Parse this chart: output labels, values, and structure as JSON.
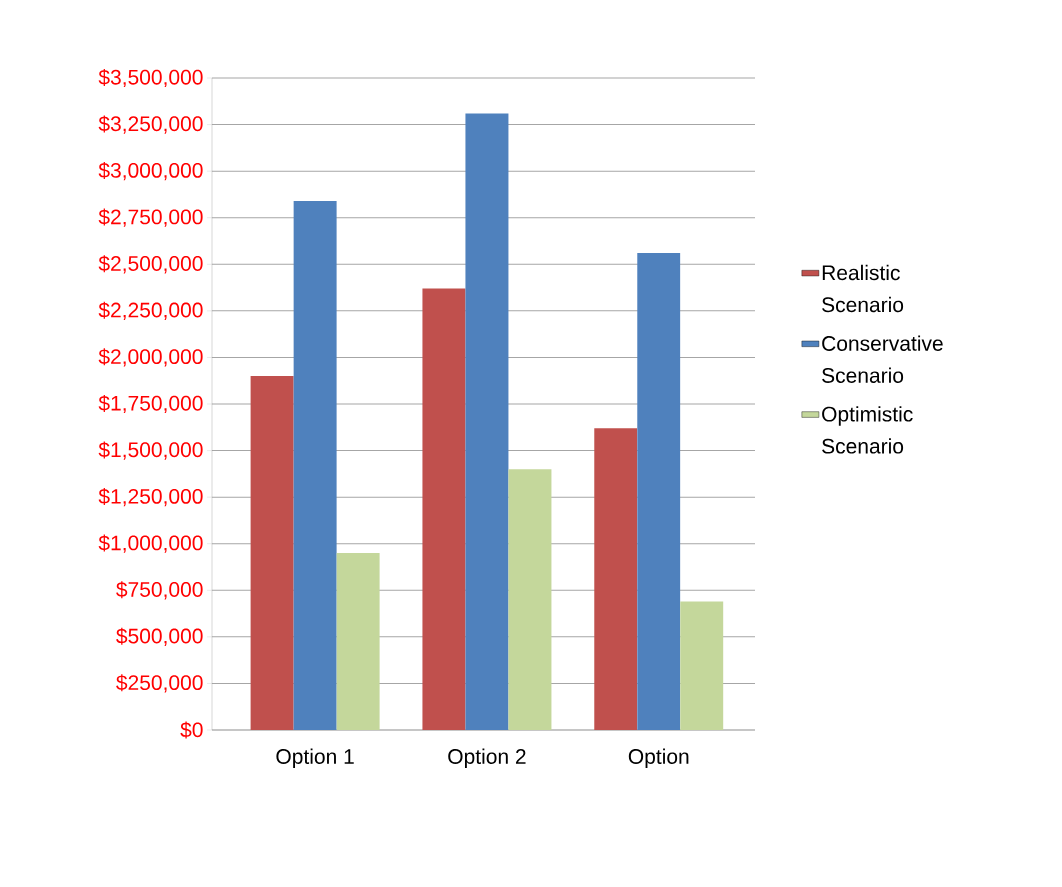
{
  "chart_data": {
    "type": "bar",
    "categories": [
      "Option 1",
      "Option 2",
      "Option"
    ],
    "series": [
      {
        "name": "Realistic Scenario",
        "color": "#c0504d",
        "values": [
          1900000,
          2370000,
          1620000
        ]
      },
      {
        "name": "Conservative Scenario",
        "color": "#4f81bd",
        "values": [
          2840000,
          3310000,
          2560000
        ]
      },
      {
        "name": "Optimistic Scenario",
        "color": "#c4d79b",
        "values": [
          950000,
          1400000,
          690000
        ]
      }
    ],
    "ylim": [
      0,
      3500000
    ],
    "yticks": [
      {
        "value": 0,
        "label": "$0"
      },
      {
        "value": 250000,
        "label": "$250,000"
      },
      {
        "value": 500000,
        "label": "$500,000"
      },
      {
        "value": 750000,
        "label": "$750,000"
      },
      {
        "value": 1000000,
        "label": "$1,000,000"
      },
      {
        "value": 1250000,
        "label": "$1,250,000"
      },
      {
        "value": 1500000,
        "label": "$1,500,000"
      },
      {
        "value": 1750000,
        "label": "$1,750,000"
      },
      {
        "value": 2000000,
        "label": "$2,000,000"
      },
      {
        "value": 2250000,
        "label": "$2,250,000"
      },
      {
        "value": 2500000,
        "label": "$2,500,000"
      },
      {
        "value": 2750000,
        "label": "$2,750,000"
      },
      {
        "value": 3000000,
        "label": "$3,000,000"
      },
      {
        "value": 3250000,
        "label": "$3,250,000"
      },
      {
        "value": 3500000,
        "label": "$3,500,000"
      }
    ],
    "grid": "y",
    "legend": "right"
  }
}
